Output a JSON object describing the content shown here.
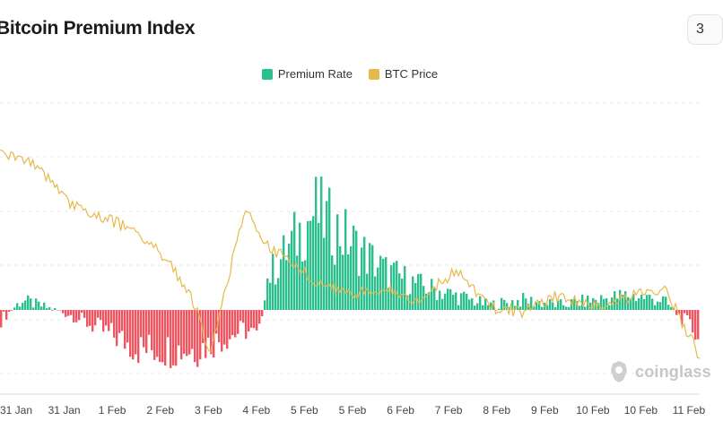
{
  "header": {
    "title": "Bitcoin Premium Index",
    "corner_button_label": "3"
  },
  "colors": {
    "premium_positive": "#2bbf8e",
    "premium_negative": "#ef5560",
    "btc_price": "#e8b84b",
    "grid": "#e8e8e8"
  },
  "watermark": {
    "text": "coinglass"
  },
  "chart_data": {
    "type": "bar",
    "title": "Bitcoin Premium Index",
    "legend": {
      "position": "top-center",
      "entries": [
        "Premium Rate",
        "BTC Price"
      ]
    },
    "grid": true,
    "x_tick_labels": [
      "31 Jan",
      "31 Jan",
      "1 Feb",
      "2 Feb",
      "3 Feb",
      "4 Feb",
      "5 Feb",
      "5 Feb",
      "6 Feb",
      "7 Feb",
      "8 Feb",
      "9 Feb",
      "10 Feb",
      "10 Feb",
      "11 Feb"
    ],
    "series": [
      {
        "name": "Premium Rate",
        "type": "bar",
        "profile_x": [
          0,
          0.03,
          0.1,
          0.2,
          0.28,
          0.35,
          0.37,
          0.38,
          0.4,
          0.45,
          0.5,
          0.55,
          0.6,
          0.65,
          0.7,
          0.75,
          0.8,
          0.85,
          0.9,
          0.95,
          1.0
        ],
        "profile_values": [
          -0.2,
          0.2,
          -0.1,
          -0.8,
          -0.8,
          -0.4,
          -0.6,
          0.6,
          1.0,
          2.0,
          1.4,
          0.8,
          0.5,
          0.3,
          0.1,
          0.2,
          0.1,
          0.2,
          0.3,
          0.2,
          -0.5
        ]
      },
      {
        "name": "BTC Price",
        "type": "line",
        "profile_x": [
          0,
          0.05,
          0.1,
          0.15,
          0.2,
          0.25,
          0.28,
          0.3,
          0.32,
          0.35,
          0.38,
          0.42,
          0.45,
          0.5,
          0.55,
          0.6,
          0.65,
          0.7,
          0.75,
          0.8,
          0.85,
          0.9,
          0.95,
          1.0
        ],
        "profile_values": [
          0.92,
          0.88,
          0.72,
          0.66,
          0.6,
          0.45,
          0.3,
          0.1,
          0.35,
          0.7,
          0.55,
          0.48,
          0.4,
          0.35,
          0.38,
          0.32,
          0.45,
          0.3,
          0.28,
          0.35,
          0.3,
          0.34,
          0.38,
          0.1
        ]
      }
    ]
  }
}
